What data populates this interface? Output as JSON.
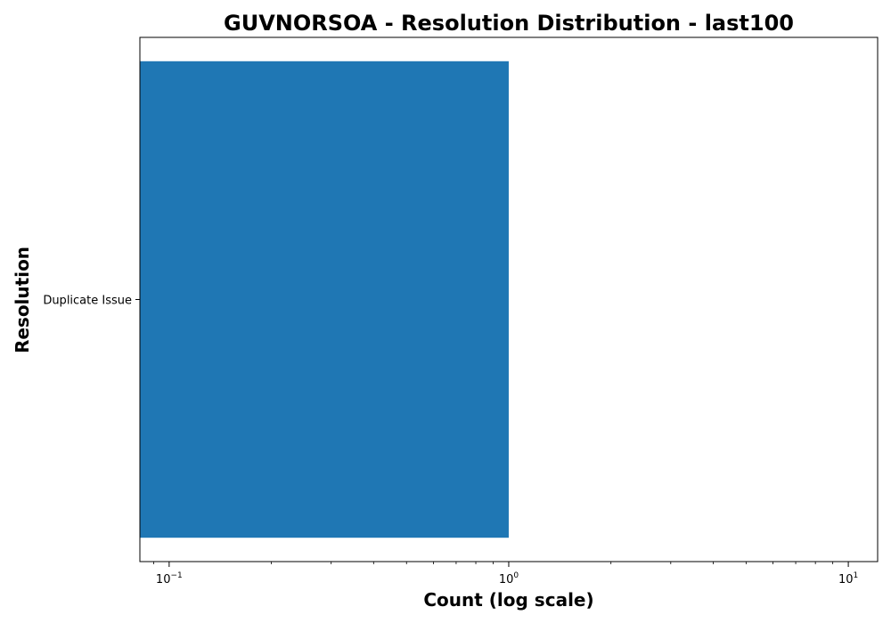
{
  "chart_data": {
    "type": "bar",
    "orientation": "horizontal",
    "title": "GUVNORSOA - Resolution Distribution - last100",
    "xlabel": "Count (log scale)",
    "ylabel": "Resolution",
    "x_scale": "log",
    "xlim": [
      0.082,
      12.2
    ],
    "x_ticks": [
      {
        "value": 0.1,
        "base": "10",
        "exponent": "−1"
      },
      {
        "value": 1,
        "base": "10",
        "exponent": "0"
      },
      {
        "value": 10,
        "base": "10",
        "exponent": "1"
      }
    ],
    "categories": [
      "Duplicate Issue"
    ],
    "values": [
      1
    ],
    "bar_color": "#1f77b4",
    "grid": false,
    "legend": "none"
  }
}
